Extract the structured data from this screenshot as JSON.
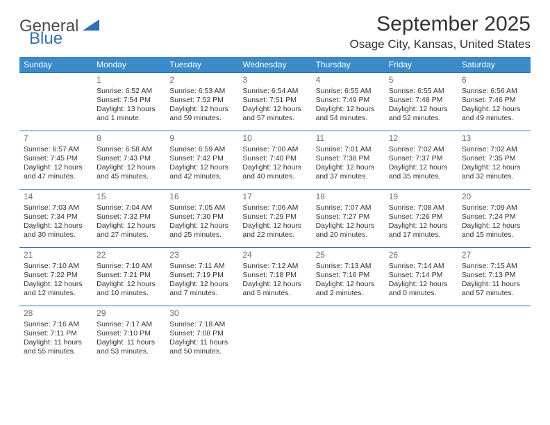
{
  "logo": {
    "part1": "General",
    "part2": "Blue"
  },
  "title": "September 2025",
  "location": "Osage City, Kansas, United States",
  "colors": {
    "header_bg": "#3b8bc9",
    "header_text": "#ffffff",
    "row_border": "#2f6fb0",
    "text": "#333333",
    "daynum": "#6b6b6b",
    "logo_gray": "#4a4a4a",
    "logo_blue": "#2f6fb0"
  },
  "typography": {
    "title_fontsize": 30,
    "location_fontsize": 17,
    "dayheader_fontsize": 12,
    "cell_fontsize": 10.5,
    "daynum_fontsize": 12
  },
  "day_headers": [
    "Sunday",
    "Monday",
    "Tuesday",
    "Wednesday",
    "Thursday",
    "Friday",
    "Saturday"
  ],
  "weeks": [
    [
      null,
      {
        "n": "1",
        "sr": "Sunrise: 6:52 AM",
        "ss": "Sunset: 7:54 PM",
        "dl": "Daylight: 13 hours and 1 minute."
      },
      {
        "n": "2",
        "sr": "Sunrise: 6:53 AM",
        "ss": "Sunset: 7:52 PM",
        "dl": "Daylight: 12 hours and 59 minutes."
      },
      {
        "n": "3",
        "sr": "Sunrise: 6:54 AM",
        "ss": "Sunset: 7:51 PM",
        "dl": "Daylight: 12 hours and 57 minutes."
      },
      {
        "n": "4",
        "sr": "Sunrise: 6:55 AM",
        "ss": "Sunset: 7:49 PM",
        "dl": "Daylight: 12 hours and 54 minutes."
      },
      {
        "n": "5",
        "sr": "Sunrise: 6:55 AM",
        "ss": "Sunset: 7:48 PM",
        "dl": "Daylight: 12 hours and 52 minutes."
      },
      {
        "n": "6",
        "sr": "Sunrise: 6:56 AM",
        "ss": "Sunset: 7:46 PM",
        "dl": "Daylight: 12 hours and 49 minutes."
      }
    ],
    [
      {
        "n": "7",
        "sr": "Sunrise: 6:57 AM",
        "ss": "Sunset: 7:45 PM",
        "dl": "Daylight: 12 hours and 47 minutes."
      },
      {
        "n": "8",
        "sr": "Sunrise: 6:58 AM",
        "ss": "Sunset: 7:43 PM",
        "dl": "Daylight: 12 hours and 45 minutes."
      },
      {
        "n": "9",
        "sr": "Sunrise: 6:59 AM",
        "ss": "Sunset: 7:42 PM",
        "dl": "Daylight: 12 hours and 42 minutes."
      },
      {
        "n": "10",
        "sr": "Sunrise: 7:00 AM",
        "ss": "Sunset: 7:40 PM",
        "dl": "Daylight: 12 hours and 40 minutes."
      },
      {
        "n": "11",
        "sr": "Sunrise: 7:01 AM",
        "ss": "Sunset: 7:38 PM",
        "dl": "Daylight: 12 hours and 37 minutes."
      },
      {
        "n": "12",
        "sr": "Sunrise: 7:02 AM",
        "ss": "Sunset: 7:37 PM",
        "dl": "Daylight: 12 hours and 35 minutes."
      },
      {
        "n": "13",
        "sr": "Sunrise: 7:02 AM",
        "ss": "Sunset: 7:35 PM",
        "dl": "Daylight: 12 hours and 32 minutes."
      }
    ],
    [
      {
        "n": "14",
        "sr": "Sunrise: 7:03 AM",
        "ss": "Sunset: 7:34 PM",
        "dl": "Daylight: 12 hours and 30 minutes."
      },
      {
        "n": "15",
        "sr": "Sunrise: 7:04 AM",
        "ss": "Sunset: 7:32 PM",
        "dl": "Daylight: 12 hours and 27 minutes."
      },
      {
        "n": "16",
        "sr": "Sunrise: 7:05 AM",
        "ss": "Sunset: 7:30 PM",
        "dl": "Daylight: 12 hours and 25 minutes."
      },
      {
        "n": "17",
        "sr": "Sunrise: 7:06 AM",
        "ss": "Sunset: 7:29 PM",
        "dl": "Daylight: 12 hours and 22 minutes."
      },
      {
        "n": "18",
        "sr": "Sunrise: 7:07 AM",
        "ss": "Sunset: 7:27 PM",
        "dl": "Daylight: 12 hours and 20 minutes."
      },
      {
        "n": "19",
        "sr": "Sunrise: 7:08 AM",
        "ss": "Sunset: 7:26 PM",
        "dl": "Daylight: 12 hours and 17 minutes."
      },
      {
        "n": "20",
        "sr": "Sunrise: 7:09 AM",
        "ss": "Sunset: 7:24 PM",
        "dl": "Daylight: 12 hours and 15 minutes."
      }
    ],
    [
      {
        "n": "21",
        "sr": "Sunrise: 7:10 AM",
        "ss": "Sunset: 7:22 PM",
        "dl": "Daylight: 12 hours and 12 minutes."
      },
      {
        "n": "22",
        "sr": "Sunrise: 7:10 AM",
        "ss": "Sunset: 7:21 PM",
        "dl": "Daylight: 12 hours and 10 minutes."
      },
      {
        "n": "23",
        "sr": "Sunrise: 7:11 AM",
        "ss": "Sunset: 7:19 PM",
        "dl": "Daylight: 12 hours and 7 minutes."
      },
      {
        "n": "24",
        "sr": "Sunrise: 7:12 AM",
        "ss": "Sunset: 7:18 PM",
        "dl": "Daylight: 12 hours and 5 minutes."
      },
      {
        "n": "25",
        "sr": "Sunrise: 7:13 AM",
        "ss": "Sunset: 7:16 PM",
        "dl": "Daylight: 12 hours and 2 minutes."
      },
      {
        "n": "26",
        "sr": "Sunrise: 7:14 AM",
        "ss": "Sunset: 7:14 PM",
        "dl": "Daylight: 12 hours and 0 minutes."
      },
      {
        "n": "27",
        "sr": "Sunrise: 7:15 AM",
        "ss": "Sunset: 7:13 PM",
        "dl": "Daylight: 11 hours and 57 minutes."
      }
    ],
    [
      {
        "n": "28",
        "sr": "Sunrise: 7:16 AM",
        "ss": "Sunset: 7:11 PM",
        "dl": "Daylight: 11 hours and 55 minutes."
      },
      {
        "n": "29",
        "sr": "Sunrise: 7:17 AM",
        "ss": "Sunset: 7:10 PM",
        "dl": "Daylight: 11 hours and 53 minutes."
      },
      {
        "n": "30",
        "sr": "Sunrise: 7:18 AM",
        "ss": "Sunset: 7:08 PM",
        "dl": "Daylight: 11 hours and 50 minutes."
      },
      null,
      null,
      null,
      null
    ]
  ]
}
